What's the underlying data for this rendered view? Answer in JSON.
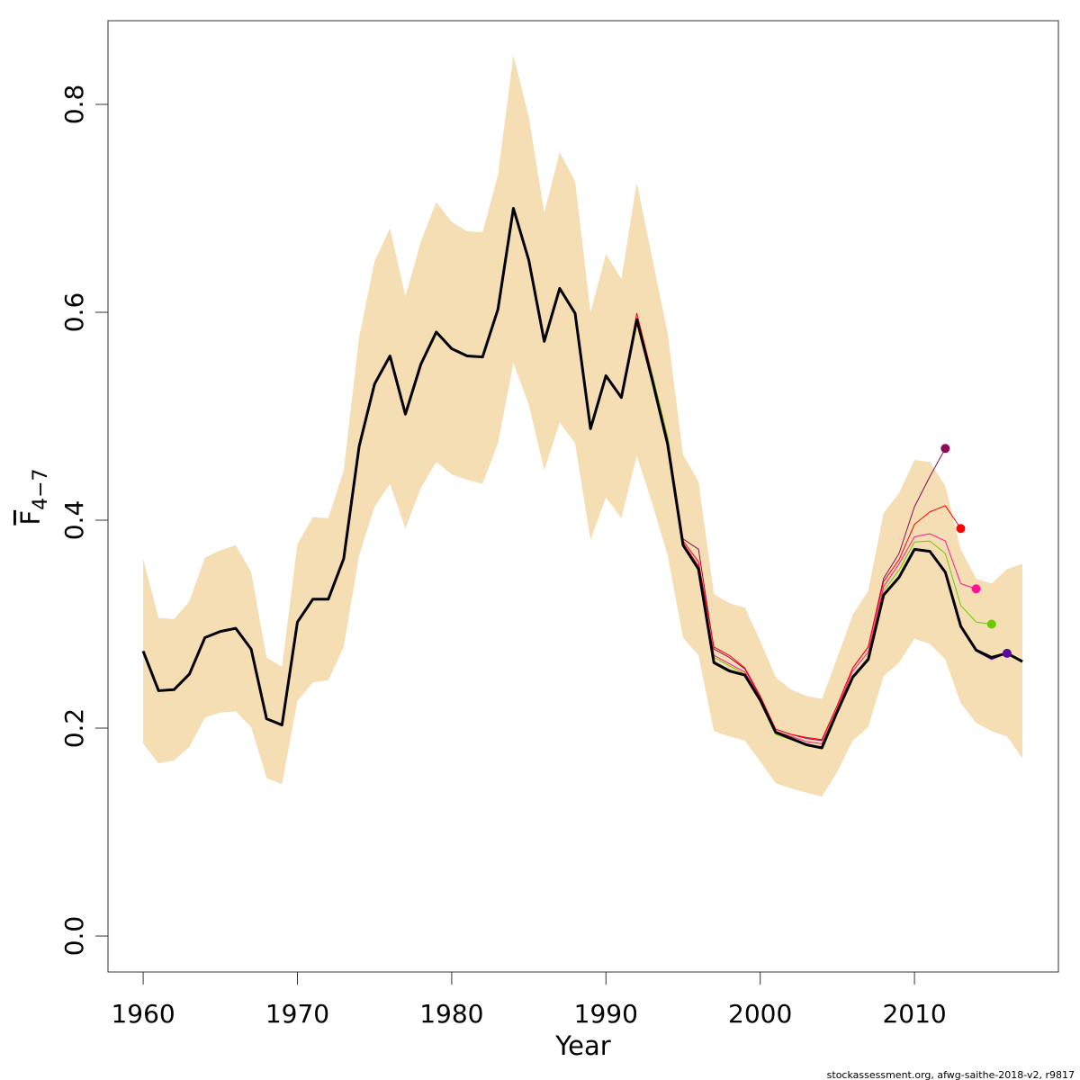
{
  "chart_data": {
    "type": "line",
    "xlabel": "Year",
    "ylabel": "F",
    "ylabel_sub": "4−7",
    "footnote": "stockassessment.org, afwg-saithe-2018-v2, r9817",
    "xlim": [
      1957.72,
      2019.33
    ],
    "ylim": [
      -0.0346,
      0.8805
    ],
    "xticks": [
      1960,
      1970,
      1980,
      1990,
      2000,
      2010
    ],
    "yticks": [
      {
        "value": 0,
        "label": "0.0"
      },
      0.2,
      0.4,
      0.6,
      0.8
    ],
    "x": [
      1960,
      1961,
      1962,
      1963,
      1964,
      1965,
      1966,
      1967,
      1968,
      1969,
      1970,
      1971,
      1972,
      1973,
      1974,
      1975,
      1976,
      1977,
      1978,
      1979,
      1980,
      1981,
      1982,
      1983,
      1984,
      1985,
      1986,
      1987,
      1988,
      1989,
      1990,
      1991,
      1992,
      1993,
      1994,
      1995,
      1996,
      1997,
      1998,
      1999,
      2000,
      2001,
      2002,
      2003,
      2004,
      2005,
      2006,
      2007,
      2008,
      2009,
      2010,
      2011,
      2012,
      2013,
      2014,
      2015,
      2016,
      2017
    ],
    "band": {
      "color": "#f5deb3",
      "upper": [
        0.363,
        0.306,
        0.305,
        0.322,
        0.364,
        0.371,
        0.376,
        0.35,
        0.268,
        0.259,
        0.377,
        0.403,
        0.402,
        0.448,
        0.576,
        0.649,
        0.681,
        0.615,
        0.668,
        0.706,
        0.687,
        0.678,
        0.677,
        0.732,
        0.847,
        0.788,
        0.696,
        0.754,
        0.726,
        0.6,
        0.656,
        0.632,
        0.725,
        0.652,
        0.58,
        0.463,
        0.437,
        0.329,
        0.32,
        0.316,
        0.284,
        0.249,
        0.237,
        0.231,
        0.228,
        0.268,
        0.309,
        0.332,
        0.407,
        0.426,
        0.458,
        0.456,
        0.433,
        0.372,
        0.344,
        0.339,
        0.353,
        0.358
      ],
      "lower": [
        0.185,
        0.166,
        0.169,
        0.182,
        0.21,
        0.215,
        0.216,
        0.201,
        0.152,
        0.146,
        0.226,
        0.244,
        0.246,
        0.278,
        0.366,
        0.413,
        0.435,
        0.392,
        0.431,
        0.456,
        0.444,
        0.439,
        0.435,
        0.474,
        0.551,
        0.511,
        0.448,
        0.494,
        0.474,
        0.381,
        0.422,
        0.402,
        0.462,
        0.416,
        0.366,
        0.287,
        0.27,
        0.197,
        0.192,
        0.188,
        0.168,
        0.147,
        0.142,
        0.138,
        0.134,
        0.158,
        0.188,
        0.201,
        0.25,
        0.263,
        0.286,
        0.281,
        0.266,
        0.224,
        0.205,
        0.197,
        0.192,
        0.171
      ]
    },
    "series": [
      {
        "color": "#8b0a5a",
        "width": 1,
        "end_marker": true,
        "values": [
          0.274,
          0.236,
          0.237,
          0.252,
          0.287,
          0.293,
          0.296,
          0.276,
          0.209,
          0.203,
          0.302,
          0.324,
          0.324,
          0.363,
          0.471,
          0.531,
          0.558,
          0.502,
          0.55,
          0.581,
          0.565,
          0.558,
          0.557,
          0.603,
          0.7,
          0.65,
          0.572,
          0.623,
          0.599,
          0.488,
          0.539,
          0.518,
          0.593,
          0.538,
          0.478,
          0.382,
          0.372,
          0.276,
          0.268,
          0.257,
          0.23,
          0.199,
          0.194,
          0.19,
          0.188,
          0.222,
          0.258,
          0.278,
          0.344,
          0.368,
          0.413,
          0.442,
          0.469,
          null,
          null,
          null,
          null,
          null
        ]
      },
      {
        "color": "#ff0000",
        "width": 1,
        "end_marker": true,
        "values": [
          0.274,
          0.236,
          0.237,
          0.252,
          0.287,
          0.293,
          0.296,
          0.276,
          0.209,
          0.203,
          0.302,
          0.324,
          0.324,
          0.363,
          0.471,
          0.531,
          0.558,
          0.502,
          0.55,
          0.581,
          0.565,
          0.558,
          0.557,
          0.603,
          0.7,
          0.65,
          0.572,
          0.623,
          0.599,
          0.488,
          0.539,
          0.518,
          0.599,
          0.54,
          0.48,
          0.38,
          0.36,
          0.278,
          0.27,
          0.258,
          0.231,
          0.199,
          0.194,
          0.191,
          0.189,
          0.222,
          0.258,
          0.278,
          0.341,
          0.362,
          0.396,
          0.408,
          0.414,
          0.392,
          null,
          null,
          null,
          null
        ]
      },
      {
        "color": "#ff1493",
        "width": 1,
        "end_marker": true,
        "values": [
          0.274,
          0.236,
          0.237,
          0.252,
          0.287,
          0.293,
          0.296,
          0.276,
          0.209,
          0.203,
          0.302,
          0.324,
          0.324,
          0.363,
          0.471,
          0.531,
          0.558,
          0.502,
          0.55,
          0.581,
          0.565,
          0.558,
          0.557,
          0.603,
          0.7,
          0.65,
          0.572,
          0.623,
          0.599,
          0.488,
          0.539,
          0.518,
          0.593,
          0.537,
          0.476,
          0.378,
          0.356,
          0.27,
          0.262,
          0.254,
          0.229,
          0.197,
          0.192,
          0.187,
          0.185,
          0.219,
          0.255,
          0.273,
          0.336,
          0.358,
          0.384,
          0.387,
          0.38,
          0.339,
          0.334,
          null,
          null,
          null
        ]
      },
      {
        "color": "#66cc00",
        "width": 1,
        "end_marker": true,
        "values": [
          0.274,
          0.236,
          0.237,
          0.252,
          0.287,
          0.293,
          0.296,
          0.276,
          0.209,
          0.203,
          0.302,
          0.324,
          0.324,
          0.363,
          0.471,
          0.531,
          0.558,
          0.502,
          0.55,
          0.581,
          0.565,
          0.558,
          0.557,
          0.603,
          0.7,
          0.65,
          0.572,
          0.623,
          0.599,
          0.488,
          0.539,
          0.518,
          0.593,
          0.54,
          0.48,
          0.376,
          0.354,
          0.268,
          0.26,
          0.252,
          0.226,
          0.194,
          0.189,
          0.184,
          0.182,
          0.216,
          0.25,
          0.268,
          0.332,
          0.352,
          0.379,
          0.38,
          0.368,
          0.318,
          0.302,
          0.3,
          null,
          null
        ]
      },
      {
        "color": "#5a0a9e",
        "width": 1,
        "end_marker": true,
        "values": [
          0.274,
          0.236,
          0.237,
          0.252,
          0.287,
          0.293,
          0.296,
          0.276,
          0.209,
          0.203,
          0.302,
          0.324,
          0.324,
          0.363,
          0.471,
          0.531,
          0.558,
          0.502,
          0.55,
          0.581,
          0.565,
          0.558,
          0.557,
          0.603,
          0.7,
          0.65,
          0.572,
          0.623,
          0.599,
          0.488,
          0.539,
          0.518,
          0.593,
          0.535,
          0.473,
          0.376,
          0.354,
          0.264,
          0.256,
          0.251,
          0.227,
          0.196,
          0.19,
          0.184,
          0.181,
          0.216,
          0.249,
          0.266,
          0.328,
          0.345,
          0.372,
          0.37,
          0.35,
          0.298,
          0.274,
          0.266,
          0.272,
          null
        ]
      },
      {
        "color": "#000000",
        "width": 3,
        "end_marker": false,
        "values": [
          0.274,
          0.236,
          0.237,
          0.252,
          0.287,
          0.293,
          0.296,
          0.276,
          0.209,
          0.203,
          0.302,
          0.324,
          0.324,
          0.363,
          0.471,
          0.531,
          0.558,
          0.502,
          0.55,
          0.581,
          0.565,
          0.558,
          0.557,
          0.603,
          0.7,
          0.65,
          0.572,
          0.623,
          0.599,
          0.488,
          0.539,
          0.518,
          0.593,
          0.535,
          0.473,
          0.376,
          0.353,
          0.263,
          0.255,
          0.251,
          0.227,
          0.196,
          0.19,
          0.184,
          0.181,
          0.216,
          0.249,
          0.266,
          0.328,
          0.345,
          0.372,
          0.37,
          0.35,
          0.298,
          0.275,
          0.268,
          0.272,
          0.264
        ]
      }
    ]
  }
}
